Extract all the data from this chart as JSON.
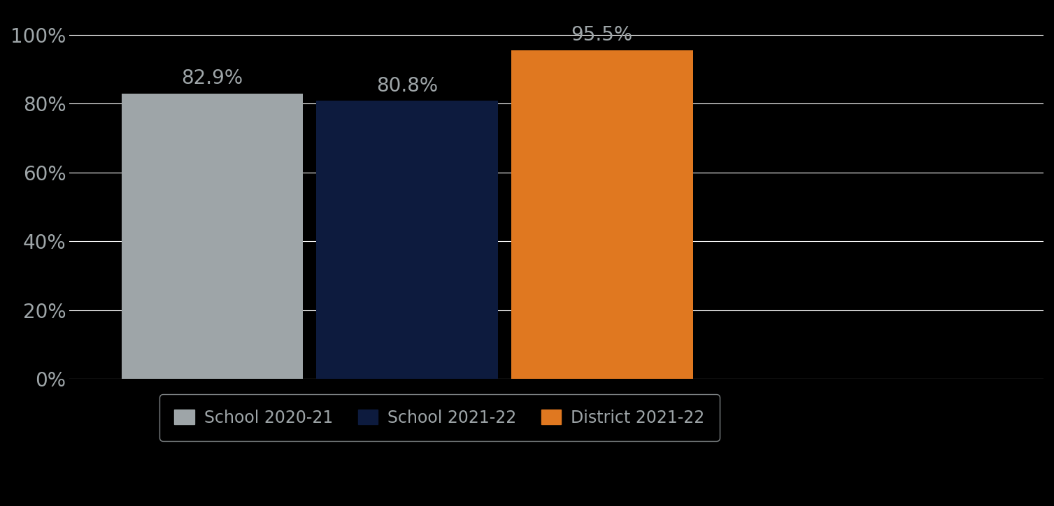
{
  "categories": [
    "School 2020-21",
    "School 2021-22",
    "District 2021-22"
  ],
  "values": [
    82.9,
    80.8,
    95.5
  ],
  "bar_colors": [
    "#9ea5a8",
    "#0d1b3e",
    "#e07820"
  ],
  "label_color": "#9ea5a8",
  "background_color": "#000000",
  "plot_background_color": "#000000",
  "grid_color": "#ffffff",
  "ytick_labels": [
    "0%",
    "20%",
    "40%",
    "60%",
    "80%",
    "100%"
  ],
  "ytick_values": [
    0,
    20,
    40,
    60,
    80,
    100
  ],
  "ylim": [
    0,
    107
  ],
  "bar_width": 0.28,
  "x_positions": [
    0.22,
    0.52,
    0.82
  ],
  "xlim": [
    0.0,
    1.5
  ],
  "value_labels": [
    "82.9%",
    "80.8%",
    "95.5%"
  ],
  "value_label_fontsize": 20,
  "ytick_fontsize": 20,
  "legend_fontsize": 17,
  "legend_box_color": "#000000",
  "legend_edge_color": "#9ea5a8"
}
